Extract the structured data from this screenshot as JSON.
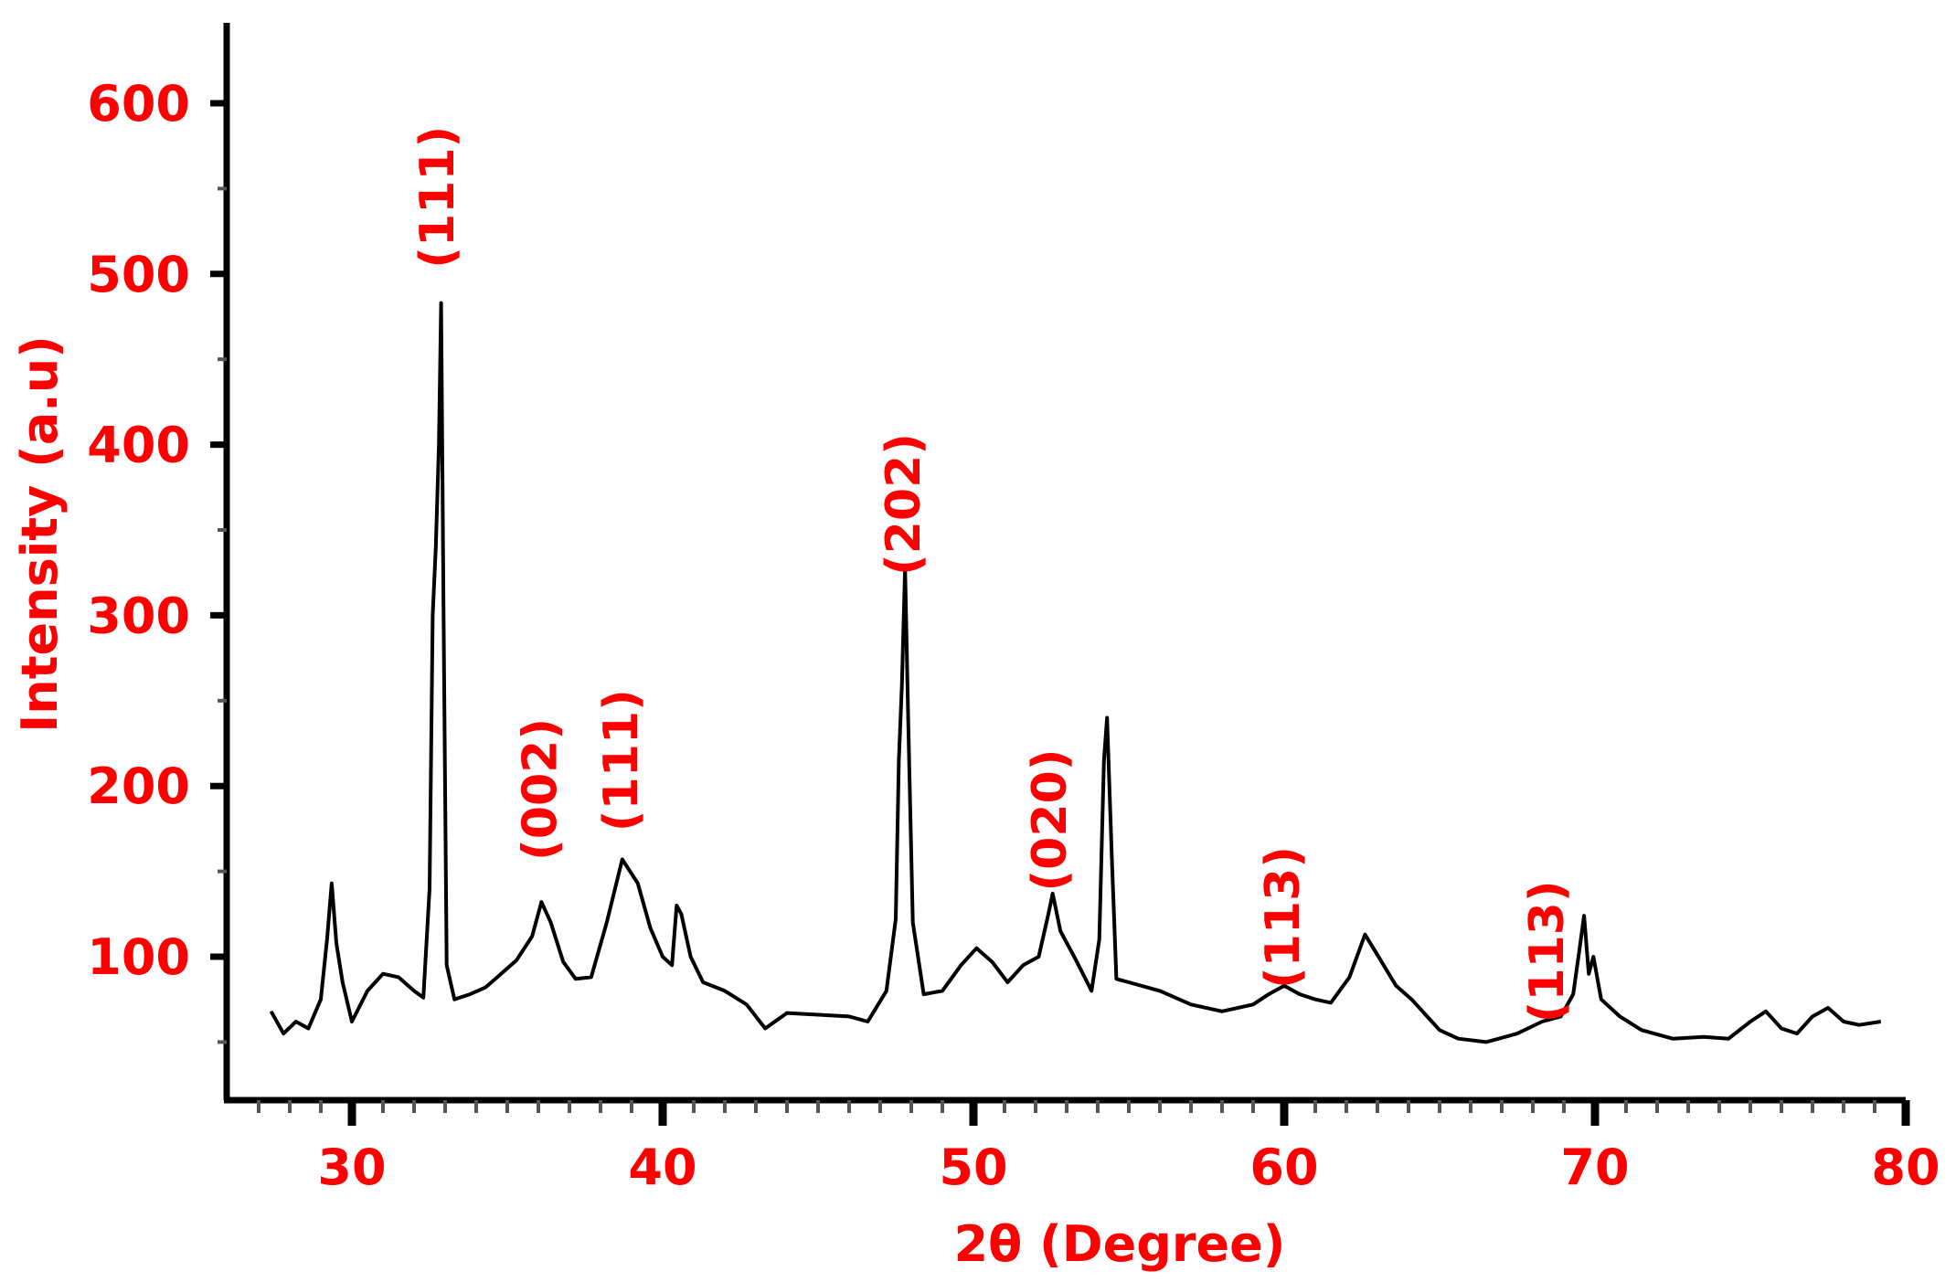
{
  "chart_data": {
    "type": "line",
    "title": "",
    "xlabel": "2θ (Degree)",
    "ylabel": "Intensity (a.u)",
    "xlim": [
      26,
      80
    ],
    "ylim": [
      0,
      645
    ],
    "x_ticks": [
      30,
      40,
      50,
      60,
      70,
      80
    ],
    "y_ticks": [
      100,
      200,
      300,
      400,
      500,
      600
    ],
    "grid": false,
    "legend": "none",
    "colors": {
      "label": "#ff0000",
      "axis": "#000000",
      "line": "#000000"
    },
    "annotations": [
      {
        "text": "(111)",
        "x": 32.8,
        "y": 545
      },
      {
        "text": "(002)",
        "x": 36.1,
        "y": 198
      },
      {
        "text": "(111)",
        "x": 38.7,
        "y": 215
      },
      {
        "text": "(202)",
        "x": 47.8,
        "y": 365
      },
      {
        "text": "(020)",
        "x": 52.5,
        "y": 180
      },
      {
        "text": "(113)",
        "x": 60.0,
        "y": 123
      },
      {
        "text": "(113)",
        "x": 68.5,
        "y": 103
      }
    ],
    "series": [
      {
        "values": [
          [
            27.4,
            68
          ],
          [
            27.8,
            55
          ],
          [
            28.2,
            62
          ],
          [
            28.6,
            58
          ],
          [
            29.0,
            75
          ],
          [
            29.2,
            110
          ],
          [
            29.35,
            143
          ],
          [
            29.5,
            108
          ],
          [
            29.7,
            85
          ],
          [
            30.0,
            62
          ],
          [
            30.5,
            80
          ],
          [
            31.0,
            90
          ],
          [
            31.5,
            88
          ],
          [
            32.0,
            80
          ],
          [
            32.3,
            76
          ],
          [
            32.5,
            140
          ],
          [
            32.6,
            300
          ],
          [
            32.7,
            340
          ],
          [
            32.8,
            400
          ],
          [
            32.87,
            483
          ],
          [
            32.95,
            300
          ],
          [
            33.05,
            95
          ],
          [
            33.3,
            75
          ],
          [
            33.8,
            78
          ],
          [
            34.3,
            82
          ],
          [
            34.8,
            90
          ],
          [
            35.3,
            98
          ],
          [
            35.8,
            112
          ],
          [
            36.1,
            132
          ],
          [
            36.4,
            120
          ],
          [
            36.8,
            97
          ],
          [
            37.2,
            87
          ],
          [
            37.7,
            88
          ],
          [
            38.2,
            120
          ],
          [
            38.7,
            157
          ],
          [
            39.2,
            143
          ],
          [
            39.6,
            117
          ],
          [
            40.0,
            100
          ],
          [
            40.3,
            95
          ],
          [
            40.45,
            130
          ],
          [
            40.6,
            125
          ],
          [
            40.9,
            100
          ],
          [
            41.3,
            85
          ],
          [
            42.0,
            80
          ],
          [
            42.7,
            72
          ],
          [
            43.3,
            58
          ],
          [
            44.0,
            67
          ],
          [
            45.0,
            66
          ],
          [
            46.0,
            65
          ],
          [
            46.6,
            62
          ],
          [
            47.2,
            80
          ],
          [
            47.5,
            122
          ],
          [
            47.6,
            215
          ],
          [
            47.7,
            260
          ],
          [
            47.8,
            328
          ],
          [
            47.9,
            240
          ],
          [
            48.05,
            120
          ],
          [
            48.4,
            78
          ],
          [
            49.0,
            80
          ],
          [
            49.6,
            95
          ],
          [
            50.1,
            105
          ],
          [
            50.6,
            97
          ],
          [
            51.1,
            85
          ],
          [
            51.6,
            95
          ],
          [
            52.1,
            100
          ],
          [
            52.4,
            124
          ],
          [
            52.55,
            137
          ],
          [
            52.8,
            115
          ],
          [
            53.3,
            98
          ],
          [
            53.8,
            80
          ],
          [
            54.05,
            110
          ],
          [
            54.2,
            215
          ],
          [
            54.3,
            240
          ],
          [
            54.45,
            160
          ],
          [
            54.6,
            87
          ],
          [
            55.0,
            85
          ],
          [
            56.0,
            80
          ],
          [
            57.0,
            72
          ],
          [
            58.0,
            68
          ],
          [
            59.0,
            72
          ],
          [
            59.5,
            78
          ],
          [
            60.0,
            83
          ],
          [
            60.5,
            78
          ],
          [
            61.0,
            75
          ],
          [
            61.5,
            73
          ],
          [
            62.1,
            88
          ],
          [
            62.6,
            113
          ],
          [
            63.1,
            98
          ],
          [
            63.6,
            83
          ],
          [
            64.1,
            75
          ],
          [
            64.6,
            65
          ],
          [
            65.0,
            57
          ],
          [
            65.6,
            52
          ],
          [
            66.5,
            50
          ],
          [
            67.5,
            55
          ],
          [
            68.3,
            62
          ],
          [
            68.9,
            65
          ],
          [
            69.3,
            78
          ],
          [
            69.5,
            104
          ],
          [
            69.65,
            124
          ],
          [
            69.8,
            90
          ],
          [
            69.95,
            100
          ],
          [
            70.2,
            75
          ],
          [
            70.8,
            65
          ],
          [
            71.5,
            57
          ],
          [
            72.5,
            52
          ],
          [
            73.5,
            53
          ],
          [
            74.3,
            52
          ],
          [
            75.0,
            62
          ],
          [
            75.5,
            68
          ],
          [
            76.0,
            58
          ],
          [
            76.5,
            55
          ],
          [
            77.0,
            65
          ],
          [
            77.5,
            70
          ],
          [
            78.0,
            62
          ],
          [
            78.5,
            60
          ],
          [
            79.2,
            62
          ]
        ]
      }
    ]
  }
}
